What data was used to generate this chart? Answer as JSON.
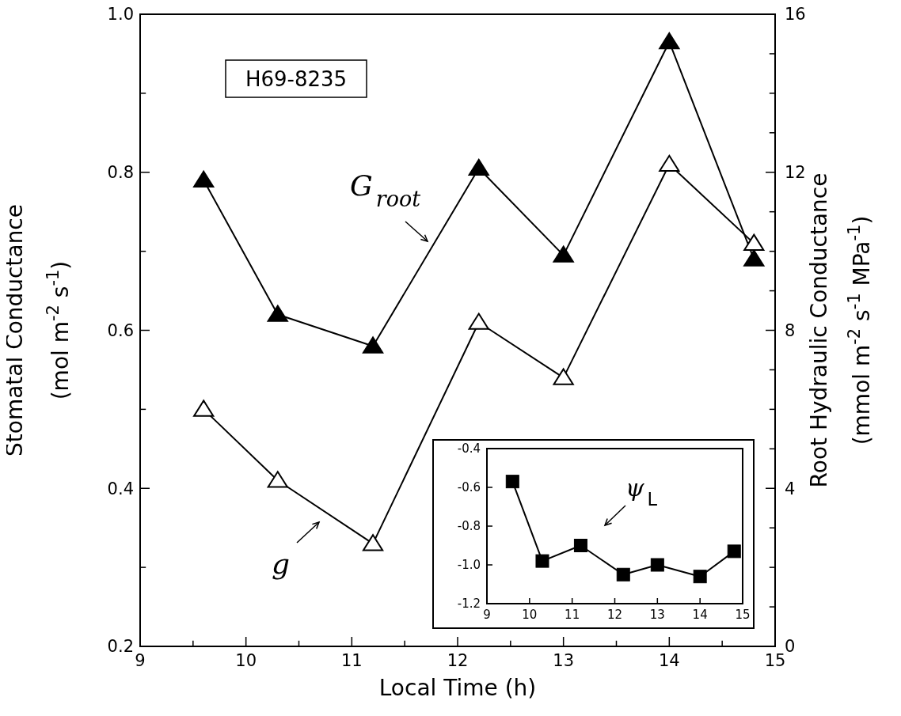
{
  "chart_data": [
    {
      "type": "line",
      "xlabel": "Local Time (h)",
      "ylabel": "Stomatal Conductance\n(mol m$^{-2}$ s$^{-1}$)",
      "y2label": "Root Hydraulic Conductance\n(mmol m$^{-2}$ s$^{-1}$ MPa$^{-1}$)",
      "annotations": [
        "H69-8235"
      ],
      "marker": "triangle",
      "x": [
        9.6,
        10.3,
        11.2,
        12.2,
        13.0,
        14.0,
        14.8
      ],
      "series": [
        {
          "name": "G$_{root}$",
          "color": "#000000",
          "axis": "y2",
          "values": [
            11.8,
            8.4,
            7.6,
            12.1,
            9.9,
            15.3,
            9.8
          ]
        },
        {
          "name": "g",
          "color": "#000000",
          "values": [
            0.5,
            0.41,
            0.33,
            0.61,
            0.54,
            0.81,
            0.71
          ]
        }
      ],
      "xlim": [
        9,
        15
      ],
      "xticks": [
        9,
        {
          "value": 9.5,
          "label": null
        },
        10,
        {
          "value": 10.5,
          "label": null
        },
        11,
        {
          "value": 11.5,
          "label": null
        },
        12,
        {
          "value": 12.5,
          "label": null
        },
        13,
        {
          "value": 13.5,
          "label": null
        },
        14,
        {
          "value": 14.5,
          "label": null
        },
        15
      ],
      "ylim": [
        0.2,
        1.0
      ],
      "yticks": [
        0.2,
        {
          "value": 0.3,
          "label": null
        },
        0.4,
        {
          "value": 0.5,
          "label": null
        },
        0.6,
        {
          "value": 0.7,
          "label": null
        },
        0.8,
        {
          "value": 0.9,
          "label": null
        },
        {
          "value": 1.0,
          "label": "1.0"
        }
      ],
      "y2lim": [
        0,
        16
      ],
      "y2ticks": [
        0,
        {
          "value": 1,
          "label": null
        },
        {
          "value": 2,
          "label": null
        },
        {
          "value": 3,
          "label": null
        },
        4,
        {
          "value": 5,
          "label": null
        },
        {
          "value": 6,
          "label": null
        },
        {
          "value": 7,
          "label": null
        },
        8,
        {
          "value": 9,
          "label": null
        },
        {
          "value": 10,
          "label": null
        },
        {
          "value": 11,
          "label": null
        },
        12,
        {
          "value": 13,
          "label": null
        },
        {
          "value": 14,
          "label": null
        },
        {
          "value": 15,
          "label": null
        },
        16
      ]
    },
    {
      "type": "line",
      "marker": "square",
      "x": [
        9.6,
        10.3,
        11.2,
        12.2,
        13.0,
        14.0,
        14.8
      ],
      "series": [
        {
          "name": "ψ$_{L}$",
          "color": "#000000",
          "values": [
            -0.57,
            -0.98,
            -0.9,
            -1.05,
            -1.0,
            -1.06,
            -0.93
          ]
        }
      ],
      "xlim": [
        9,
        15
      ],
      "xticks": [
        9,
        10,
        11,
        12,
        13,
        14,
        15
      ],
      "ylim": [
        -1.2,
        -0.4
      ],
      "yticks": [
        -1.2,
        {
          "value": -1.0,
          "label": "-1.0"
        },
        -0.8,
        -0.6,
        -0.4
      ]
    }
  ]
}
